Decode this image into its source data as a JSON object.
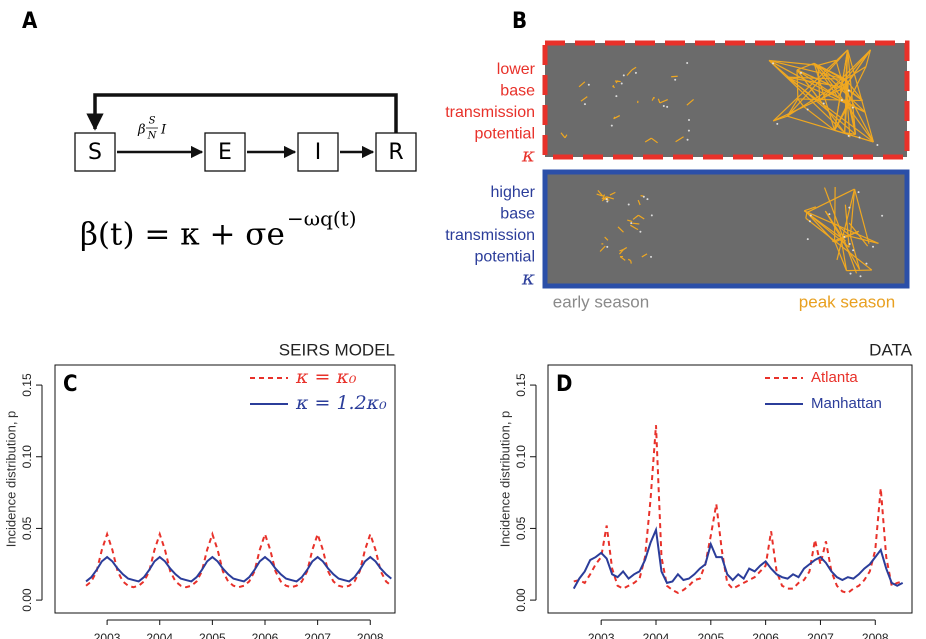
{
  "figure": {
    "A": {
      "label": "A",
      "nodes": [
        "S",
        "E",
        "I",
        "R"
      ],
      "edge_label": {
        "beta": "β",
        "num": "S",
        "den": "N",
        "var": "I"
      },
      "equation": {
        "base": "β(t) = κ + σe",
        "exponent": "−ωq(t)"
      }
    },
    "B": {
      "label": "B",
      "top_label": [
        "lower",
        "base",
        "transmission",
        "potential",
        "κ"
      ],
      "bottom_label": [
        "higher",
        "base",
        "transmission",
        "potential",
        "κ"
      ],
      "x_labels": [
        "early season",
        "peak season"
      ]
    }
  },
  "chart_data": [
    {
      "type": "line",
      "panel_label": "C",
      "title": "SEIRS MODEL",
      "y_label": "Incidence distribution, p",
      "x": [
        2002.6,
        2002.7,
        2002.8,
        2002.9,
        2003.0,
        2003.1,
        2003.2,
        2003.3,
        2003.4,
        2003.5,
        2003.6,
        2003.7,
        2003.8,
        2003.9,
        2004.0,
        2004.1,
        2004.2,
        2004.3,
        2004.4,
        2004.5,
        2004.6,
        2004.7,
        2004.8,
        2004.9,
        2005.0,
        2005.1,
        2005.2,
        2005.3,
        2005.4,
        2005.5,
        2005.6,
        2005.7,
        2005.8,
        2005.9,
        2006.0,
        2006.1,
        2006.2,
        2006.3,
        2006.4,
        2006.5,
        2006.6,
        2006.7,
        2006.8,
        2006.9,
        2007.0,
        2007.1,
        2007.2,
        2007.3,
        2007.4,
        2007.5,
        2007.6,
        2007.7,
        2007.8,
        2007.9,
        2008.0,
        2008.1,
        2008.2,
        2008.3,
        2008.4
      ],
      "series": [
        {
          "name": "κ = κ₀",
          "color": "#e8312a",
          "dashed": true,
          "values": [
            0.01,
            0.013,
            0.02,
            0.035,
            0.046,
            0.035,
            0.02,
            0.013,
            0.01,
            0.009,
            0.01,
            0.013,
            0.02,
            0.035,
            0.046,
            0.035,
            0.02,
            0.013,
            0.01,
            0.009,
            0.01,
            0.013,
            0.02,
            0.035,
            0.046,
            0.035,
            0.02,
            0.013,
            0.01,
            0.009,
            0.01,
            0.013,
            0.02,
            0.035,
            0.046,
            0.035,
            0.02,
            0.013,
            0.01,
            0.009,
            0.01,
            0.013,
            0.02,
            0.035,
            0.046,
            0.035,
            0.02,
            0.013,
            0.01,
            0.009,
            0.01,
            0.013,
            0.02,
            0.035,
            0.046,
            0.035,
            0.02,
            0.013,
            0.01
          ]
        },
        {
          "name": "κ = 1.2κ₀",
          "color": "#2b3d9a",
          "dashed": false,
          "values": [
            0.013,
            0.016,
            0.021,
            0.027,
            0.03,
            0.027,
            0.022,
            0.018,
            0.015,
            0.014,
            0.013,
            0.016,
            0.021,
            0.027,
            0.03,
            0.027,
            0.022,
            0.018,
            0.015,
            0.014,
            0.013,
            0.016,
            0.021,
            0.027,
            0.03,
            0.027,
            0.022,
            0.018,
            0.015,
            0.014,
            0.013,
            0.016,
            0.021,
            0.027,
            0.03,
            0.027,
            0.022,
            0.018,
            0.015,
            0.014,
            0.013,
            0.016,
            0.021,
            0.027,
            0.03,
            0.027,
            0.022,
            0.018,
            0.015,
            0.014,
            0.013,
            0.016,
            0.021,
            0.027,
            0.03,
            0.027,
            0.022,
            0.018,
            0.015
          ]
        }
      ],
      "xlim": [
        2002.01,
        2008.47
      ],
      "xticks": [
        2003,
        2004,
        2005,
        2006,
        2007,
        2008
      ],
      "ylim": [
        -0.009,
        0.164
      ],
      "yticks": [
        {
          "value": 0,
          "label": "0.00"
        },
        {
          "value": 0.05,
          "label": "0.05"
        },
        {
          "value": 0.1,
          "label": "0.10"
        },
        {
          "value": 0.15,
          "label": "0.15"
        }
      ],
      "legend": "top-right"
    },
    {
      "type": "line",
      "panel_label": "D",
      "title": "DATA",
      "y_label": "Incidence distribution, p",
      "x": [
        2002.5,
        2002.6,
        2002.7,
        2002.8,
        2002.9,
        2003.0,
        2003.1,
        2003.2,
        2003.3,
        2003.4,
        2003.5,
        2003.6,
        2003.7,
        2003.8,
        2003.9,
        2004.0,
        2004.1,
        2004.2,
        2004.3,
        2004.4,
        2004.5,
        2004.6,
        2004.7,
        2004.8,
        2004.9,
        2005.0,
        2005.1,
        2005.2,
        2005.3,
        2005.4,
        2005.5,
        2005.6,
        2005.7,
        2005.8,
        2005.9,
        2006.0,
        2006.1,
        2006.2,
        2006.3,
        2006.4,
        2006.5,
        2006.6,
        2006.7,
        2006.8,
        2006.9,
        2007.0,
        2007.1,
        2007.2,
        2007.3,
        2007.4,
        2007.5,
        2007.6,
        2007.7,
        2007.8,
        2007.9,
        2008.0,
        2008.1,
        2008.2,
        2008.3,
        2008.4,
        2008.5
      ],
      "series": [
        {
          "name": "Atlanta",
          "color": "#e8312a",
          "dashed": true,
          "values": [
            0.013,
            0.014,
            0.012,
            0.018,
            0.025,
            0.03,
            0.052,
            0.022,
            0.01,
            0.008,
            0.01,
            0.012,
            0.015,
            0.03,
            0.07,
            0.122,
            0.03,
            0.01,
            0.007,
            0.005,
            0.007,
            0.01,
            0.014,
            0.015,
            0.025,
            0.045,
            0.067,
            0.035,
            0.012,
            0.008,
            0.01,
            0.012,
            0.014,
            0.016,
            0.02,
            0.024,
            0.048,
            0.02,
            0.01,
            0.008,
            0.008,
            0.012,
            0.014,
            0.02,
            0.042,
            0.025,
            0.041,
            0.02,
            0.01,
            0.006,
            0.005,
            0.008,
            0.01,
            0.014,
            0.02,
            0.035,
            0.078,
            0.03,
            0.01,
            0.012,
            0.013
          ]
        },
        {
          "name": "Manhattan",
          "color": "#2b3d9a",
          "dashed": false,
          "values": [
            0.008,
            0.015,
            0.02,
            0.028,
            0.03,
            0.033,
            0.029,
            0.018,
            0.016,
            0.02,
            0.015,
            0.018,
            0.02,
            0.028,
            0.04,
            0.049,
            0.02,
            0.012,
            0.013,
            0.018,
            0.014,
            0.015,
            0.018,
            0.022,
            0.025,
            0.039,
            0.03,
            0.03,
            0.018,
            0.014,
            0.018,
            0.015,
            0.022,
            0.02,
            0.024,
            0.027,
            0.022,
            0.018,
            0.016,
            0.015,
            0.018,
            0.016,
            0.022,
            0.025,
            0.028,
            0.03,
            0.026,
            0.02,
            0.016,
            0.014,
            0.016,
            0.015,
            0.018,
            0.022,
            0.025,
            0.03,
            0.035,
            0.022,
            0.012,
            0.01,
            0.012
          ]
        }
      ],
      "xlim": [
        2002.03,
        2008.67
      ],
      "xticks": [
        2003,
        2004,
        2005,
        2006,
        2007,
        2008
      ],
      "ylim": [
        -0.009,
        0.164
      ],
      "yticks": [
        {
          "value": 0,
          "label": "0.00"
        },
        {
          "value": 0.05,
          "label": "0.05"
        },
        {
          "value": 0.1,
          "label": "0.10"
        },
        {
          "value": 0.15,
          "label": "0.15"
        }
      ],
      "legend": "top-right"
    }
  ]
}
